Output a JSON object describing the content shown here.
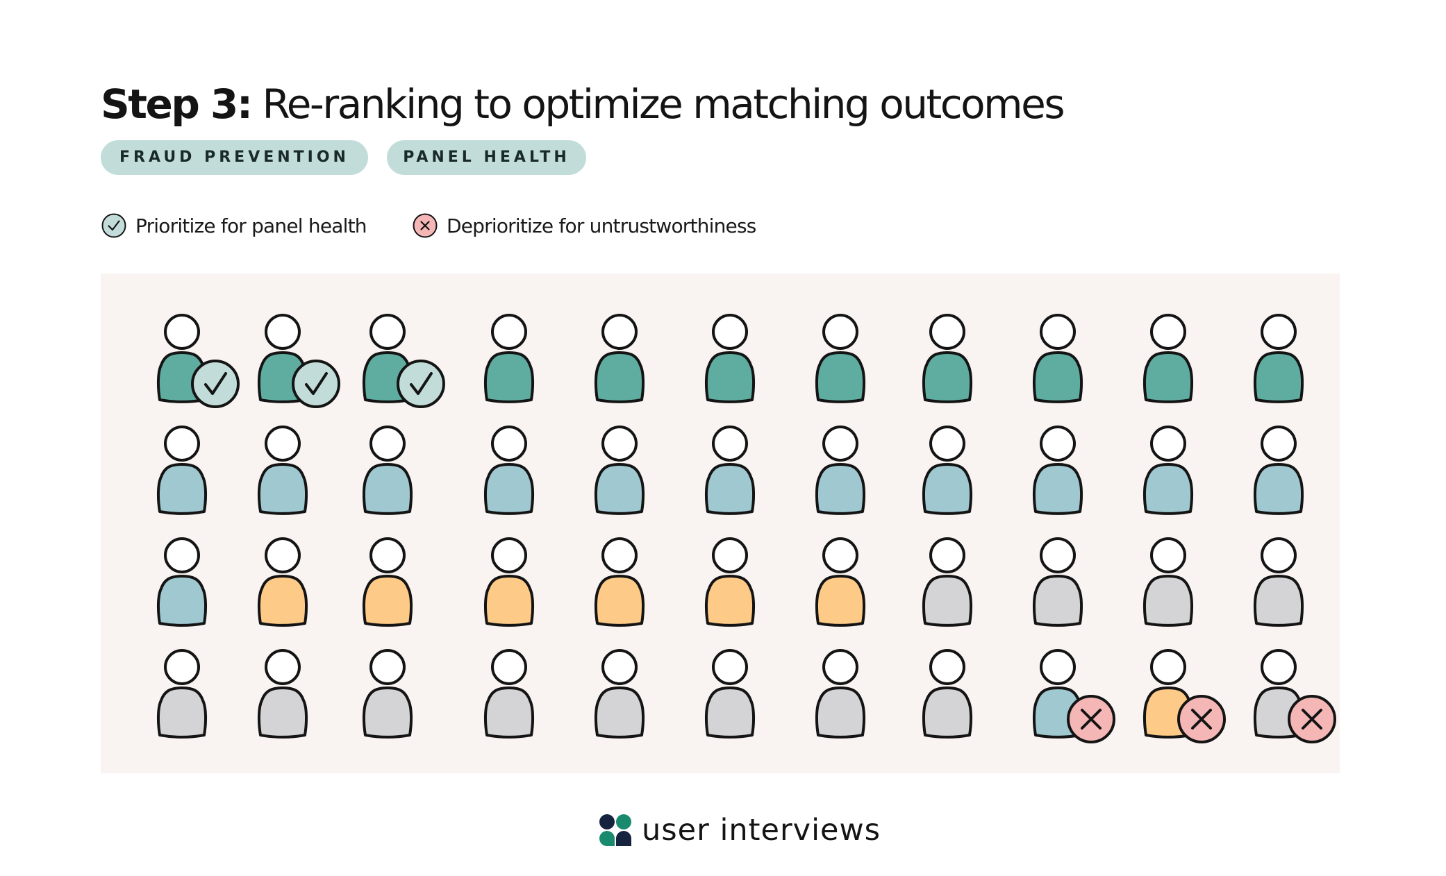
{
  "title": {
    "step": "Step 3:",
    "text": "Re-ranking to optimize matching outcomes"
  },
  "tags": [
    "FRAUD PREVENTION",
    "PANEL HEALTH"
  ],
  "legend": {
    "prioritize": "Prioritize for panel health",
    "deprioritize": "Deprioritize for untrustworthiness"
  },
  "colors": {
    "teal": "#5fada0",
    "blue": "#a0c8d1",
    "orange": "#fdca87",
    "gray": "#d4d3d5",
    "check_badge": "#c2ddd9",
    "x_badge": "#f4b7b6",
    "panel_bg": "#f9f4f2",
    "logo_green": "#1a8a6e",
    "logo_navy": "#16233f"
  },
  "figure_grid": {
    "rows": 4,
    "cols": 11,
    "people": [
      [
        "teal",
        "teal",
        "teal",
        "teal",
        "teal",
        "teal",
        "teal",
        "teal",
        "teal",
        "teal",
        "teal"
      ],
      [
        "blue",
        "blue",
        "blue",
        "blue",
        "blue",
        "blue",
        "blue",
        "blue",
        "blue",
        "blue",
        "blue"
      ],
      [
        "blue",
        "orange",
        "orange",
        "orange",
        "orange",
        "orange",
        "orange",
        "gray",
        "gray",
        "gray",
        "gray"
      ],
      [
        "gray",
        "gray",
        "gray",
        "gray",
        "gray",
        "gray",
        "gray",
        "gray",
        "blue",
        "orange",
        "gray"
      ]
    ],
    "prioritized": [
      [
        0,
        0
      ],
      [
        0,
        1
      ],
      [
        0,
        2
      ]
    ],
    "deprioritized": [
      [
        3,
        8
      ],
      [
        3,
        9
      ],
      [
        3,
        10
      ]
    ]
  },
  "logo": {
    "text": "user interviews",
    "icon": "user-interviews-logo-icon"
  }
}
